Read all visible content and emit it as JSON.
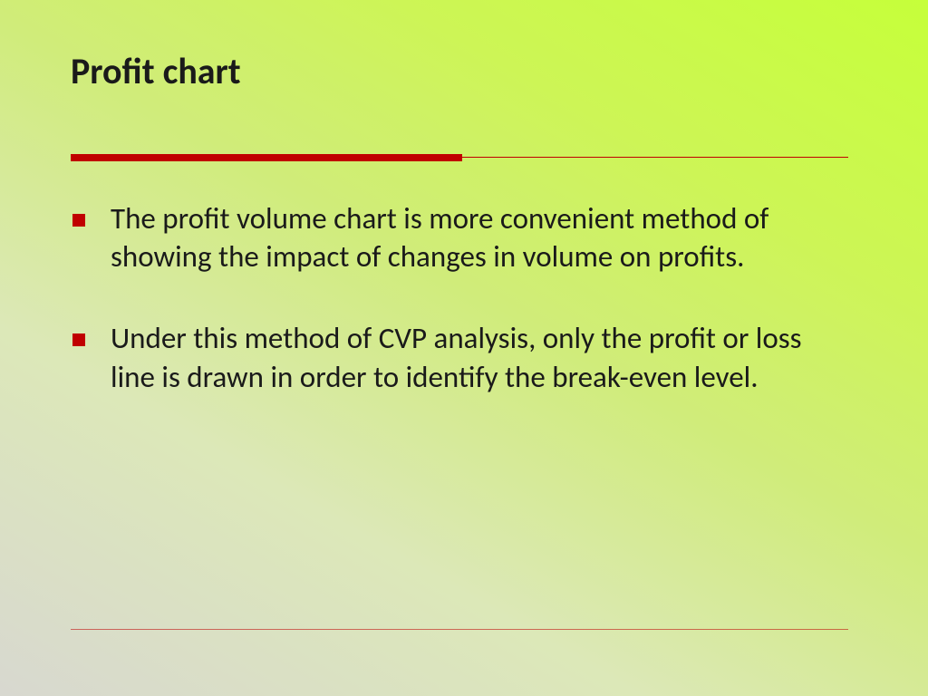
{
  "slide": {
    "title": "Profit chart",
    "bullets": [
      "The profit volume chart is more convenient method of showing the impact of changes in volume on profits.",
      "Under this method of CVP analysis, only the profit or loss line is drawn in order to identify the break-even level."
    ],
    "style": {
      "background_gradient_start": "#d8d8d0",
      "background_gradient_end": "#c6ff3a",
      "accent_color": "#c00000",
      "text_color": "#1a1a1a",
      "title_fontsize": 40,
      "title_fontweight": 700,
      "body_fontsize": 33,
      "bullet_marker_shape": "square",
      "bullet_marker_size": 14,
      "divider_thick_width": 432,
      "divider_thick_height": 8,
      "divider_total_width": 858,
      "font_family": "Calibri"
    }
  }
}
